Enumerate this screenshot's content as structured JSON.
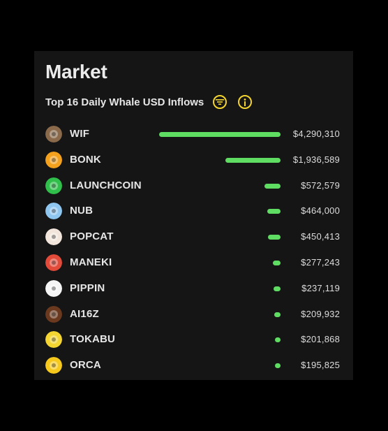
{
  "market": {
    "title": "Market",
    "subtitle": "Top 16 Daily Whale USD Inflows",
    "filter_icon": "filter-icon",
    "info_icon": "info-icon",
    "accent_color": "#f3d42f",
    "bar_color": "#5fdd63"
  },
  "tokens": [
    {
      "name": "WIF",
      "value": "$4,290,310",
      "amount": 4290310,
      "icon": "wif-avatar-icon",
      "color": "#8a6a4a"
    },
    {
      "name": "BONK",
      "value": "$1,936,589",
      "amount": 1936589,
      "icon": "bonk-avatar-icon",
      "color": "#f4a21e"
    },
    {
      "name": "LAUNCHCOIN",
      "value": "$572,579",
      "amount": 572579,
      "icon": "launchcoin-avatar-icon",
      "color": "#2fbf4a"
    },
    {
      "name": "NUB",
      "value": "$464,000",
      "amount": 464000,
      "icon": "nub-avatar-icon",
      "color": "#8fc6f0"
    },
    {
      "name": "POPCAT",
      "value": "$450,413",
      "amount": 450413,
      "icon": "popcat-avatar-icon",
      "color": "#f2e6dc"
    },
    {
      "name": "MANEKI",
      "value": "$277,243",
      "amount": 277243,
      "icon": "maneki-avatar-icon",
      "color": "#e24a3a"
    },
    {
      "name": "PIPPIN",
      "value": "$237,119",
      "amount": 237119,
      "icon": "pippin-avatar-icon",
      "color": "#f4f4f4"
    },
    {
      "name": "AI16Z",
      "value": "$209,932",
      "amount": 209932,
      "icon": "ai16z-avatar-icon",
      "color": "#6b3a1e"
    },
    {
      "name": "TOKABU",
      "value": "$201,868",
      "amount": 201868,
      "icon": "tokabu-avatar-icon",
      "color": "#f4d531"
    },
    {
      "name": "ORCA",
      "value": "$195,825",
      "amount": 195825,
      "icon": "orca-avatar-icon",
      "color": "#f6c91c"
    }
  ]
}
